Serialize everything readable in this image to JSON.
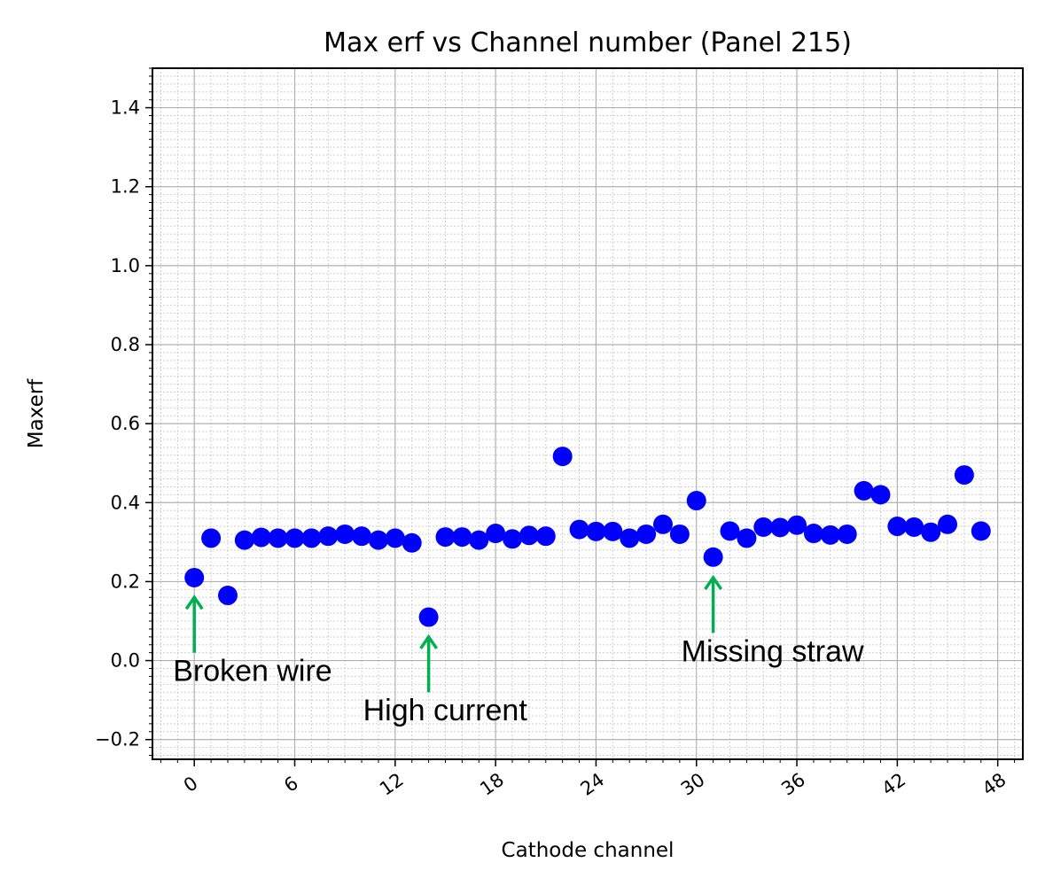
{
  "chart_data": {
    "type": "scatter",
    "title": "Max erf vs Channel number (Panel 215)",
    "xlabel": "Cathode channel",
    "ylabel": "Maxerf",
    "xlim": [
      -2.5,
      49.5
    ],
    "ylim": [
      -0.25,
      1.5
    ],
    "xticks": [
      "0",
      "6",
      "12",
      "18",
      "24",
      "30",
      "36",
      "42",
      "48"
    ],
    "yticks": [
      "−0.2",
      "0.0",
      "0.2",
      "0.4",
      "0.6",
      "0.8",
      "1.0",
      "1.2",
      "1.4"
    ],
    "grid": true,
    "marker_color": "#0000ff",
    "annotation_color": "#00b050",
    "series": [
      {
        "x": [
          0,
          1,
          2,
          3,
          4,
          5,
          6,
          7,
          8,
          9,
          10,
          11,
          12,
          13,
          14,
          15,
          16,
          17,
          18,
          19,
          20,
          21,
          22,
          23,
          24,
          25,
          26,
          27,
          28,
          29,
          30,
          31,
          32,
          33,
          34,
          35,
          36,
          37,
          38,
          39,
          40,
          41,
          42,
          43,
          44,
          45,
          46,
          47
        ],
        "y": [
          0.21,
          0.31,
          0.165,
          0.305,
          0.312,
          0.31,
          0.31,
          0.31,
          0.315,
          0.32,
          0.315,
          0.305,
          0.31,
          0.298,
          0.11,
          0.313,
          0.313,
          0.305,
          0.322,
          0.308,
          0.317,
          0.315,
          0.517,
          0.332,
          0.327,
          0.327,
          0.31,
          0.32,
          0.345,
          0.32,
          0.405,
          0.262,
          0.328,
          0.31,
          0.338,
          0.337,
          0.343,
          0.322,
          0.318,
          0.32,
          0.43,
          0.42,
          0.34,
          0.338,
          0.325,
          0.345,
          0.47,
          0.328
        ]
      }
    ],
    "annotations": [
      {
        "text": "Broken wire",
        "target_x": 0,
        "target_y": 0.16,
        "tail_y": 0.02
      },
      {
        "text": "High current",
        "target_x": 14,
        "target_y": 0.06,
        "tail_y": -0.08
      },
      {
        "text": "Missing straw",
        "target_x": 31,
        "target_y": 0.21,
        "tail_y": 0.07
      }
    ]
  }
}
